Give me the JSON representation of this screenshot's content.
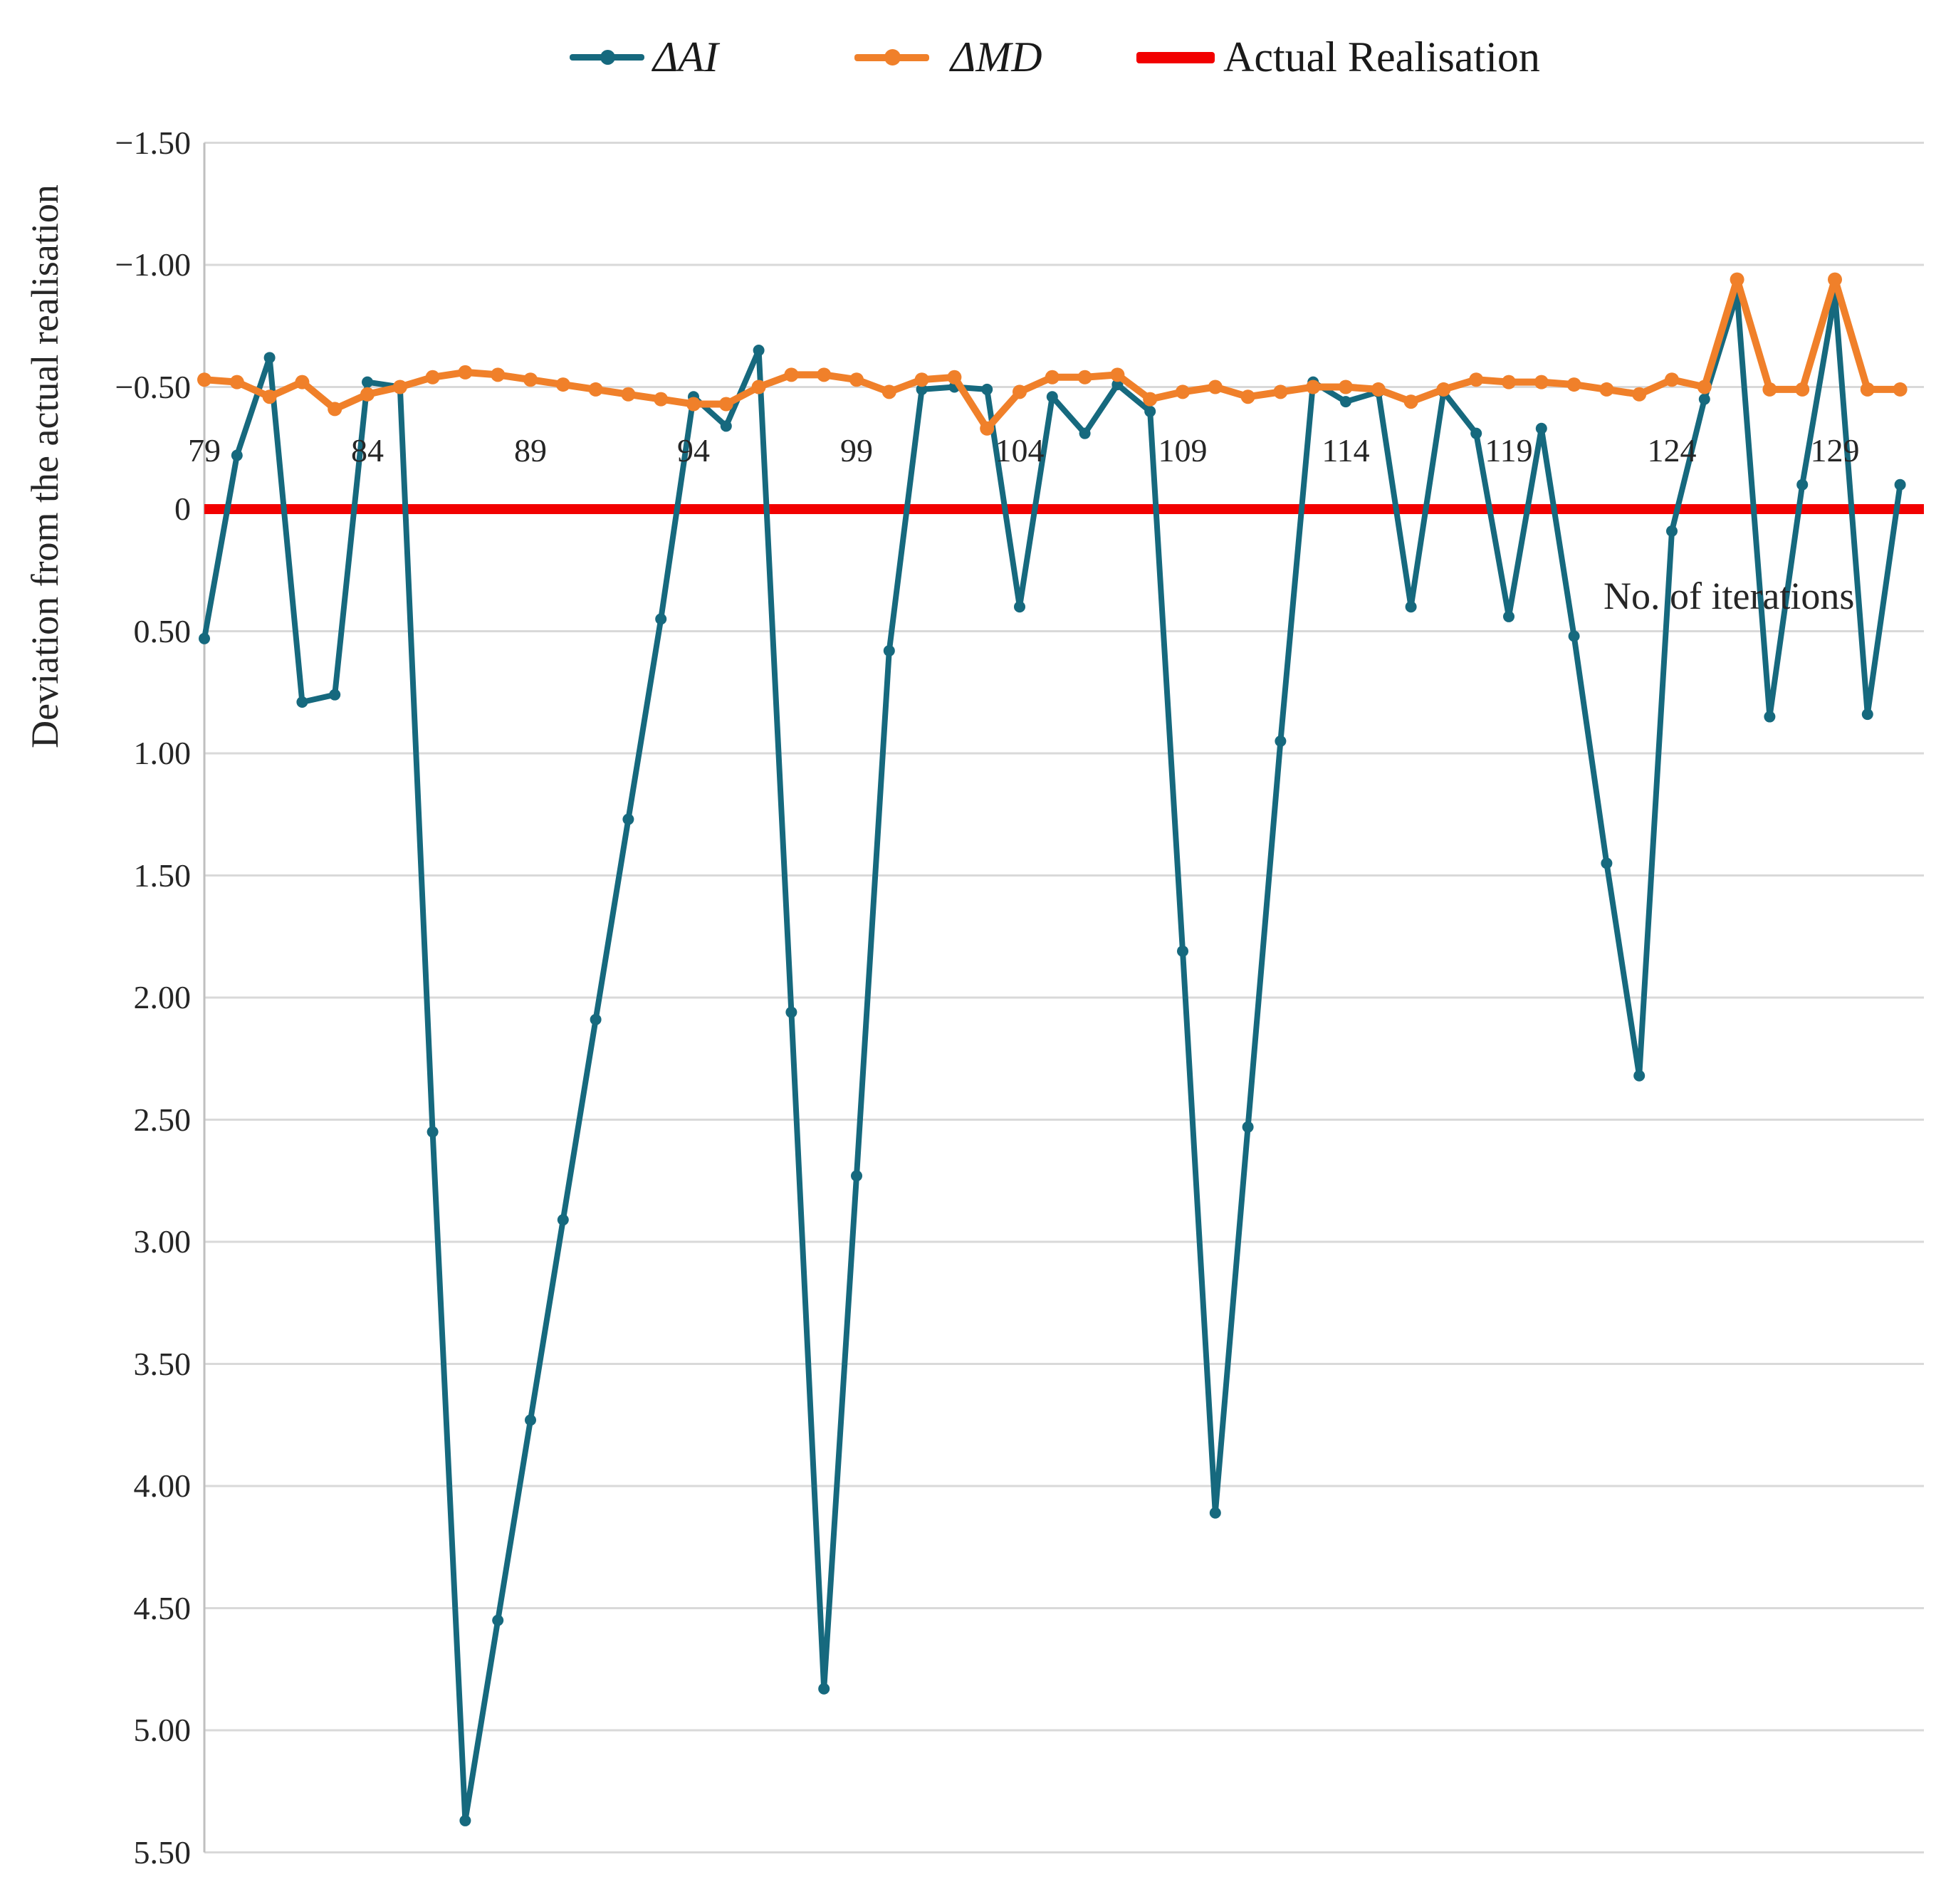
{
  "chart_data": {
    "type": "line",
    "xlabel": "No. of iterations",
    "ylabel": "Deviation from the actual realisation",
    "y_axis_inverted": true,
    "ylim": [
      -1.5,
      5.5
    ],
    "grid": "horizontal",
    "grid_step": 0.5,
    "x": [
      79,
      80,
      81,
      82,
      83,
      84,
      85,
      86,
      87,
      88,
      89,
      90,
      91,
      92,
      93,
      94,
      95,
      96,
      97,
      98,
      99,
      100,
      101,
      102,
      103,
      104,
      105,
      106,
      107,
      108,
      109,
      110,
      111,
      112,
      113,
      114,
      115,
      116,
      117,
      118,
      119,
      120,
      121,
      122,
      123,
      124,
      125,
      126,
      127,
      128,
      129,
      130,
      131
    ],
    "x_tick_labels": [
      "79",
      "84",
      "89",
      "94",
      "99",
      "104",
      "109",
      "114",
      "119",
      "124",
      "129"
    ],
    "x_ticks": [
      79,
      84,
      89,
      94,
      99,
      104,
      109,
      114,
      119,
      124,
      129
    ],
    "y_ticks": [
      {
        "label": "−1.50",
        "value": -1.5
      },
      {
        "label": "−1.00",
        "value": -1.0
      },
      {
        "label": "−0.50",
        "value": -0.5
      },
      {
        "label": "0",
        "value": 0
      },
      {
        "label": "0.50",
        "value": 0.5
      },
      {
        "label": "1.00",
        "value": 1.0
      },
      {
        "label": "1.50",
        "value": 1.5
      },
      {
        "label": "2.00",
        "value": 2.0
      },
      {
        "label": "2.50",
        "value": 2.5
      },
      {
        "label": "3.00",
        "value": 3.0
      },
      {
        "label": "3.50",
        "value": 3.5
      },
      {
        "label": "4.00",
        "value": 4.0
      },
      {
        "label": "4.50",
        "value": 4.5
      },
      {
        "label": "5.00",
        "value": 5.0
      },
      {
        "label": "5.50",
        "value": 5.5
      }
    ],
    "series": [
      {
        "name": "ΔAI",
        "color": "#16697E",
        "marker": "circle",
        "values": [
          0.53,
          -0.22,
          -0.62,
          0.79,
          0.76,
          -0.52,
          -0.5,
          2.55,
          5.37,
          4.55,
          3.73,
          2.91,
          2.09,
          1.27,
          0.45,
          -0.46,
          -0.34,
          -0.65,
          2.06,
          4.83,
          2.73,
          0.58,
          -0.49,
          -0.5,
          -0.49,
          0.4,
          -0.46,
          -0.31,
          -0.51,
          -0.4,
          1.81,
          4.11,
          2.53,
          0.95,
          -0.52,
          -0.44,
          -0.48,
          0.4,
          -0.48,
          -0.31,
          0.44,
          -0.33,
          0.52,
          1.45,
          2.32,
          0.09,
          -0.45,
          -0.88,
          0.85,
          -0.1,
          -0.88,
          0.84,
          -0.1
        ]
      },
      {
        "name": "ΔMD",
        "color": "#F0802A",
        "marker": "circle",
        "values": [
          -0.53,
          -0.52,
          -0.46,
          -0.52,
          -0.41,
          -0.47,
          -0.5,
          -0.54,
          -0.56,
          -0.55,
          -0.53,
          -0.51,
          -0.49,
          -0.47,
          -0.45,
          -0.43,
          -0.43,
          -0.5,
          -0.55,
          -0.55,
          -0.53,
          -0.48,
          -0.53,
          -0.54,
          -0.33,
          -0.48,
          -0.54,
          -0.54,
          -0.55,
          -0.45,
          -0.48,
          -0.5,
          -0.46,
          -0.48,
          -0.5,
          -0.5,
          -0.49,
          -0.44,
          -0.49,
          -0.53,
          -0.52,
          -0.52,
          -0.51,
          -0.49,
          -0.47,
          -0.53,
          -0.5,
          -0.94,
          -0.49,
          -0.49,
          -0.94,
          -0.49,
          -0.49
        ]
      }
    ],
    "reference_line": {
      "name": "Actual Realisation",
      "color": "#F20000",
      "value": 0
    },
    "legend_position": "top"
  },
  "legend": {
    "ai_label": "ΔAI",
    "md_label": "ΔMD",
    "actual_label": "Actual Realisation"
  },
  "colors": {
    "ai": "#16697E",
    "md": "#F0802A",
    "actual": "#F20000",
    "gridline": "#D9D9D9",
    "axis_line": "#BFBFBF",
    "text": "#262626"
  }
}
